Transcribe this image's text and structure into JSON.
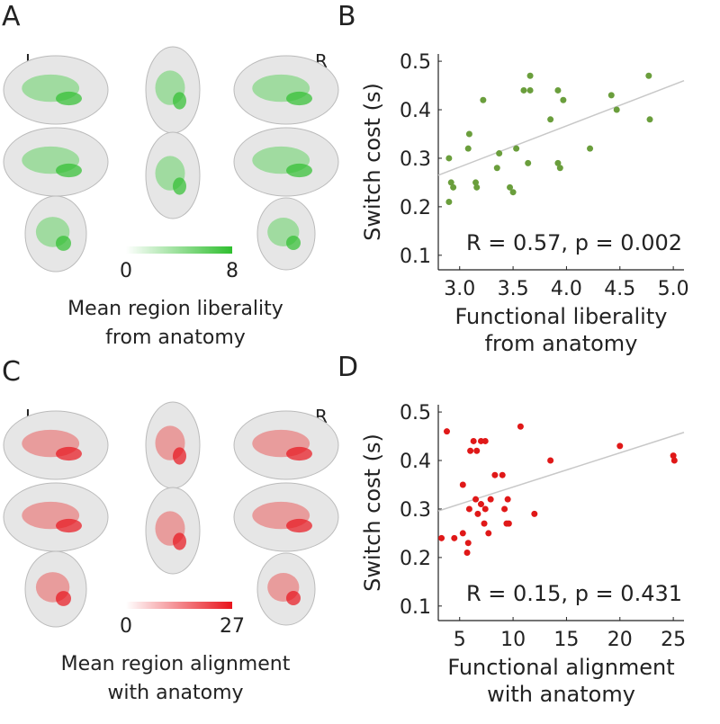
{
  "brain_panels": [
    {
      "letter": "A",
      "left_label": "L",
      "right_label": "R",
      "cmap": [
        "#ffffff",
        "#2fbf2f"
      ],
      "tint": "#8fd88f",
      "colorbar": {
        "ticks": [
          0,
          8
        ]
      },
      "caption": [
        "Mean region liberality",
        "from anatomy"
      ]
    },
    {
      "letter": "C",
      "left_label": "L",
      "right_label": "R",
      "cmap": [
        "#ffffff",
        "#e8141c"
      ],
      "tint": "#e88a8a",
      "colorbar": {
        "ticks": [
          0,
          27
        ]
      },
      "caption": [
        "Mean region alignment",
        "with anatomy"
      ]
    }
  ],
  "chart_data": [
    {
      "type": "scatter",
      "panel": "B",
      "ylabel": "Switch cost (s)",
      "xlabel": [
        "Functional liberality",
        "from anatomy"
      ],
      "annotation": "R = 0.57, p = 0.002",
      "color": "#6a9e3c",
      "line_color": "#c8c8c8",
      "x": [
        2.9,
        2.92,
        2.94,
        2.9,
        3.08,
        3.09,
        3.15,
        3.16,
        3.22,
        3.35,
        3.37,
        3.47,
        3.5,
        3.53,
        3.6,
        3.66,
        3.66,
        3.64,
        3.85,
        3.92,
        3.97,
        3.92,
        3.94,
        4.22,
        4.42,
        4.47,
        4.77,
        4.78
      ],
      "values": [
        0.3,
        0.25,
        0.24,
        0.21,
        0.32,
        0.35,
        0.25,
        0.24,
        0.42,
        0.28,
        0.31,
        0.24,
        0.23,
        0.32,
        0.44,
        0.47,
        0.44,
        0.29,
        0.38,
        0.44,
        0.42,
        0.29,
        0.28,
        0.32,
        0.43,
        0.4,
        0.47,
        0.38
      ],
      "fit_line": {
        "x": [
          2.8,
          5.1
        ],
        "y": [
          0.265,
          0.46
        ]
      },
      "xlim": [
        2.8,
        5.1
      ],
      "ylim": [
        0.07,
        0.515
      ],
      "xticks": [
        {
          "value": 3,
          "label": "3.0"
        },
        3.5,
        {
          "value": 4,
          "label": "4.0"
        },
        4.5,
        {
          "value": 5,
          "label": "5.0"
        }
      ],
      "yticks": [
        0.1,
        0.2,
        0.3,
        0.4,
        0.5
      ]
    },
    {
      "type": "scatter",
      "panel": "D",
      "ylabel": "Switch cost (s)",
      "xlabel": [
        "Functional alignment",
        "with anatomy"
      ],
      "annotation": "R = 0.15, p = 0.431",
      "color": "#e01818",
      "line_color": "#c8c8c8",
      "x": [
        3.8,
        3.3,
        4.5,
        5.3,
        5.3,
        5.8,
        5.7,
        5.9,
        6.0,
        6.3,
        6.5,
        6.6,
        6.7,
        7.0,
        7.0,
        7.3,
        7.4,
        7.4,
        7.7,
        7.9,
        8.3,
        9.0,
        9.2,
        9.4,
        9.6,
        9.5,
        10.7,
        12.0,
        13.5,
        20.0,
        25.0,
        25.1
      ],
      "values": [
        0.46,
        0.24,
        0.24,
        0.35,
        0.25,
        0.23,
        0.21,
        0.3,
        0.42,
        0.44,
        0.32,
        0.42,
        0.29,
        0.44,
        0.31,
        0.27,
        0.44,
        0.3,
        0.25,
        0.32,
        0.37,
        0.37,
        0.3,
        0.27,
        0.27,
        0.32,
        0.47,
        0.29,
        0.4,
        0.43,
        0.41,
        0.4
      ],
      "fit_line": {
        "x": [
          3,
          26
        ],
        "y": [
          0.296,
          0.458
        ]
      },
      "xlim": [
        3,
        26
      ],
      "ylim": [
        0.07,
        0.515
      ],
      "xticks": [
        5,
        10,
        15,
        20,
        25
      ],
      "yticks": [
        0.1,
        0.2,
        0.3,
        0.4,
        0.5
      ]
    }
  ]
}
